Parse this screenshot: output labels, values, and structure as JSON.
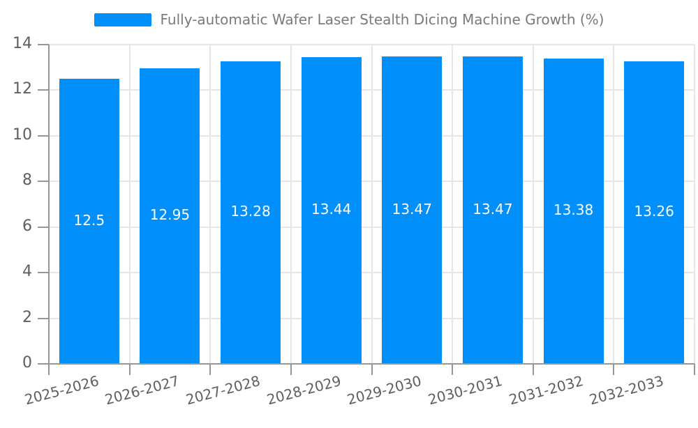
{
  "colors": {
    "bar": "#008FFB",
    "grid": "#e6e6e6",
    "axis": "#969696",
    "axis_text": "#5f5f5f",
    "legend_text": "#7a7a7a",
    "value_text": "#ffffff",
    "background": "#ffffff"
  },
  "chart_data": {
    "type": "bar",
    "title": "",
    "legend_label": "Fully-automatic Wafer Laser Stealth Dicing Machine Growth (%)",
    "legend_position": "top-center",
    "categories": [
      "2025-2026",
      "2026-2027",
      "2027-2028",
      "2028-2029",
      "2029-2030",
      "2030-2031",
      "2031-2032",
      "2032-2033"
    ],
    "values": [
      12.5,
      12.95,
      13.28,
      13.44,
      13.47,
      13.47,
      13.38,
      13.26
    ],
    "value_labels": [
      "12.5",
      "12.95",
      "13.28",
      "13.44",
      "13.47",
      "13.47",
      "13.38",
      "13.26"
    ],
    "xlabel": "",
    "ylabel": "",
    "ylim": [
      0,
      14
    ],
    "yticks": [
      0,
      2,
      4,
      6,
      8,
      10,
      12,
      14
    ],
    "ytick_labels": [
      "0",
      "2",
      "4",
      "6",
      "8",
      "10",
      "12",
      "14"
    ],
    "grid": true,
    "x_label_rotation_deg": -15
  }
}
